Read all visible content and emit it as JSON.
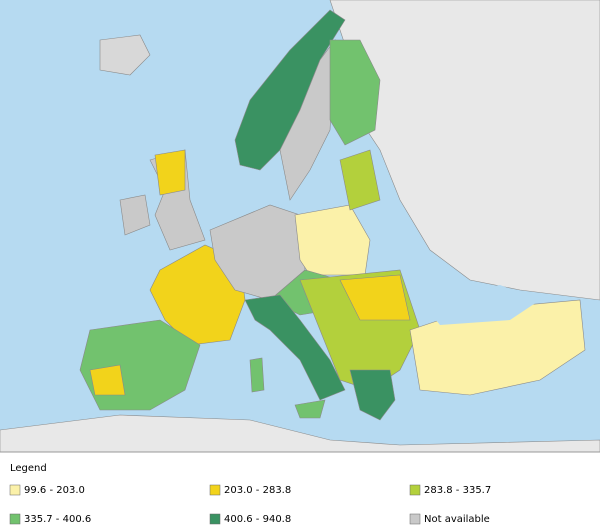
{
  "legend": {
    "title": "Legend",
    "items": [
      {
        "label": "99.6 - 203.0",
        "color": "#fbf1a9"
      },
      {
        "label": "203.0 - 283.8",
        "color": "#f2d31b"
      },
      {
        "label": "283.8 - 335.7",
        "color": "#b3d03c"
      },
      {
        "label": "335.7 - 400.6",
        "color": "#72c26e"
      },
      {
        "label": "400.6 - 940.8",
        "color": "#3a9262"
      },
      {
        "label": "Not available",
        "color": "#c9c9c9"
      }
    ]
  }
}
